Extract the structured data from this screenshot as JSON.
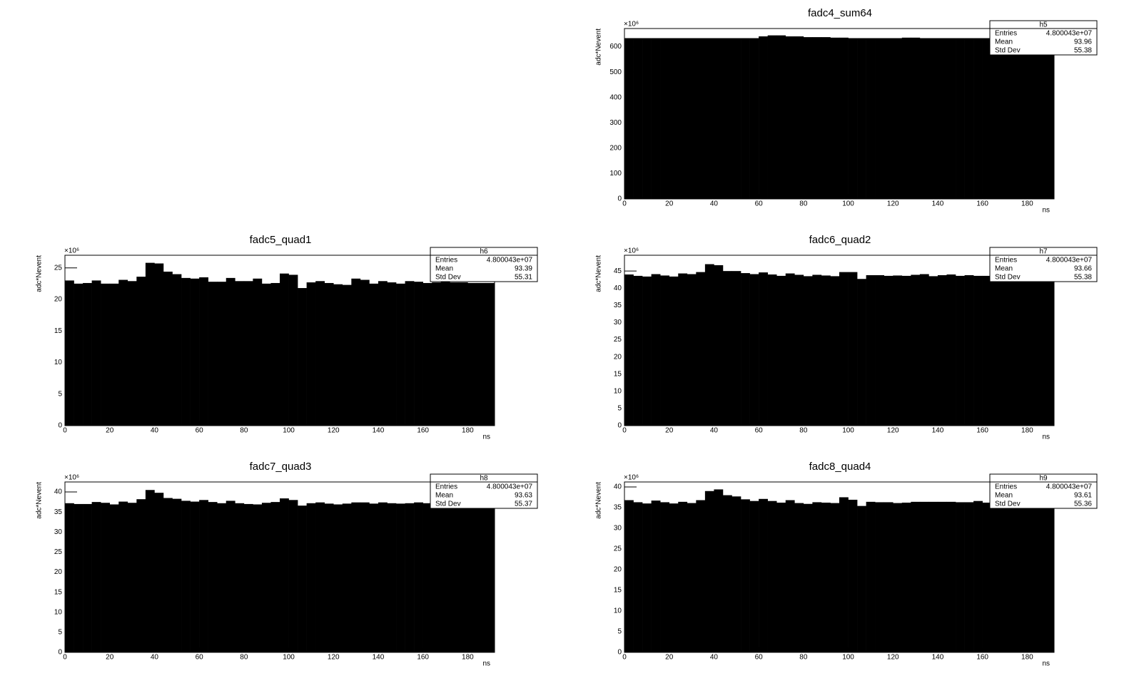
{
  "chart_data": [
    {
      "type": "histogram",
      "title": "fadc4_sum64",
      "x_label": "ns",
      "y_label": "adc*Nevent",
      "y_multiplier": "×10⁶",
      "color": "#000000",
      "bins": [
        0,
        4,
        8,
        12,
        16,
        20,
        24,
        28,
        32,
        36,
        40,
        44,
        48,
        52,
        56,
        60,
        64,
        68,
        72,
        76,
        80,
        84,
        88,
        92,
        96,
        100,
        104,
        108,
        112,
        116,
        120,
        124,
        128,
        132,
        136,
        140,
        144,
        148,
        152,
        156,
        160,
        164,
        168,
        172,
        176,
        180,
        184,
        188,
        192
      ],
      "values": [
        634,
        634,
        634,
        634,
        634,
        634,
        634,
        634,
        634,
        634,
        634,
        634,
        634,
        634,
        634,
        641,
        645,
        645,
        641,
        641,
        638,
        638,
        638,
        636,
        636,
        634,
        634,
        634,
        634,
        634,
        634,
        636,
        636,
        634,
        634,
        634,
        634,
        634,
        634,
        634,
        634,
        634,
        634,
        634,
        634,
        634,
        634,
        634
      ],
      "xlim": [
        0,
        192
      ],
      "xticks": [
        0,
        20,
        40,
        60,
        80,
        100,
        120,
        140,
        160,
        180
      ],
      "ylim": [
        0,
        672
      ],
      "yticks": [
        0,
        100,
        200,
        300,
        400,
        500,
        600
      ],
      "stats": {
        "name": "h5",
        "rows": [
          [
            "Entries",
            "4.800043e+07"
          ],
          [
            "Mean",
            "93.96"
          ],
          [
            "Std Dev",
            "55.38"
          ]
        ]
      }
    },
    {
      "type": "histogram",
      "title": "fadc5_quad1",
      "x_label": "ns",
      "y_label": "adc*Nevent",
      "y_multiplier": "×10⁶",
      "color": "#000000",
      "bins": [
        0,
        4,
        8,
        12,
        16,
        20,
        24,
        28,
        32,
        36,
        40,
        44,
        48,
        52,
        56,
        60,
        64,
        68,
        72,
        76,
        80,
        84,
        88,
        92,
        96,
        100,
        104,
        108,
        112,
        116,
        120,
        124,
        128,
        132,
        136,
        140,
        144,
        148,
        152,
        156,
        160,
        164,
        168,
        172,
        176,
        180,
        184,
        188,
        192
      ],
      "values": [
        23,
        22.5,
        22.6,
        23,
        22.5,
        22.5,
        23.1,
        22.9,
        23.6,
        25.8,
        25.7,
        24.4,
        24,
        23.4,
        23.3,
        23.5,
        22.8,
        22.8,
        23.4,
        22.9,
        22.9,
        23.3,
        22.5,
        22.6,
        24.1,
        23.9,
        21.8,
        22.7,
        22.9,
        22.6,
        22.4,
        22.3,
        23.3,
        23.1,
        22.5,
        22.9,
        22.7,
        22.5,
        22.9,
        22.8,
        22.6,
        22.7,
        22.8,
        22.7,
        22.7,
        22.6,
        22.6,
        22.6
      ],
      "xlim": [
        0,
        192
      ],
      "xticks": [
        0,
        20,
        40,
        60,
        80,
        100,
        120,
        140,
        160,
        180
      ],
      "ylim": [
        0,
        27
      ],
      "yticks": [
        0,
        5,
        10,
        15,
        20,
        25
      ],
      "stats": {
        "name": "h6",
        "rows": [
          [
            "Entries",
            "4.800043e+07"
          ],
          [
            "Mean",
            "93.39"
          ],
          [
            "Std Dev",
            "55.31"
          ]
        ]
      }
    },
    {
      "type": "histogram",
      "title": "fadc6_quad2",
      "x_label": "ns",
      "y_label": "adc*Nevent",
      "y_multiplier": "×10⁶",
      "color": "#000000",
      "bins": [
        0,
        4,
        8,
        12,
        16,
        20,
        24,
        28,
        32,
        36,
        40,
        44,
        48,
        52,
        56,
        60,
        64,
        68,
        72,
        76,
        80,
        84,
        88,
        92,
        96,
        100,
        104,
        108,
        112,
        116,
        120,
        124,
        128,
        132,
        136,
        140,
        144,
        148,
        152,
        156,
        160,
        164,
        168,
        172,
        176,
        180,
        184,
        188,
        192
      ],
      "values": [
        44,
        43.6,
        43.4,
        44.1,
        43.7,
        43.4,
        44.3,
        44.1,
        44.7,
        47,
        46.7,
        45,
        45,
        44.4,
        44.1,
        44.6,
        44,
        43.6,
        44.3,
        43.9,
        43.5,
        43.9,
        43.7,
        43.5,
        44.7,
        44.7,
        42.7,
        43.8,
        43.8,
        43.6,
        43.7,
        43.6,
        43.9,
        44.1,
        43.5,
        43.8,
        44,
        43.6,
        43.8,
        43.6,
        43.6,
        43.9,
        43.6,
        43.6,
        43.7,
        43.7,
        43.6,
        43.6
      ],
      "xlim": [
        0,
        192
      ],
      "xticks": [
        0,
        20,
        40,
        60,
        80,
        100,
        120,
        140,
        160,
        180
      ],
      "ylim": [
        0,
        49.6
      ],
      "yticks": [
        0,
        5,
        10,
        15,
        20,
        25,
        30,
        35,
        40,
        45
      ],
      "stats": {
        "name": "h7",
        "rows": [
          [
            "Entries",
            "4.800043e+07"
          ],
          [
            "Mean",
            "93.66"
          ],
          [
            "Std Dev",
            "55.38"
          ]
        ]
      }
    },
    {
      "type": "histogram",
      "title": "fadc7_quad3",
      "x_label": "ns",
      "y_label": "adc*Nevent",
      "y_multiplier": "×10⁶",
      "color": "#000000",
      "bins": [
        0,
        4,
        8,
        12,
        16,
        20,
        24,
        28,
        32,
        36,
        40,
        44,
        48,
        52,
        56,
        60,
        64,
        68,
        72,
        76,
        80,
        84,
        88,
        92,
        96,
        100,
        104,
        108,
        112,
        116,
        120,
        124,
        128,
        132,
        136,
        140,
        144,
        148,
        152,
        156,
        160,
        164,
        168,
        172,
        176,
        180,
        184,
        188,
        192
      ],
      "values": [
        37.2,
        37,
        37,
        37.5,
        37.3,
        36.9,
        37.6,
        37.3,
        38.2,
        40.5,
        39.8,
        38.5,
        38.3,
        37.8,
        37.6,
        38,
        37.5,
        37.2,
        37.8,
        37.2,
        37,
        36.9,
        37.3,
        37.5,
        38.4,
        38,
        36.6,
        37.2,
        37.4,
        37.1,
        36.9,
        37.1,
        37.4,
        37.4,
        37.1,
        37.4,
        37.2,
        37.1,
        37.2,
        37.4,
        37.2,
        37.2,
        37.3,
        37.2,
        37.2,
        37.1,
        37.1,
        37.1
      ],
      "xlim": [
        0,
        192
      ],
      "xticks": [
        0,
        20,
        40,
        60,
        80,
        100,
        120,
        140,
        160,
        180
      ],
      "ylim": [
        0,
        42.5
      ],
      "yticks": [
        0,
        5,
        10,
        15,
        20,
        25,
        30,
        35,
        40
      ],
      "stats": {
        "name": "h8",
        "rows": [
          [
            "Entries",
            "4.800043e+07"
          ],
          [
            "Mean",
            "93.63"
          ],
          [
            "Std Dev",
            "55.37"
          ]
        ]
      }
    },
    {
      "type": "histogram",
      "title": "fadc8_quad4",
      "x_label": "ns",
      "y_label": "adc*Nevent",
      "y_multiplier": "×10⁶",
      "color": "#000000",
      "bins": [
        0,
        4,
        8,
        12,
        16,
        20,
        24,
        28,
        32,
        36,
        40,
        44,
        48,
        52,
        56,
        60,
        64,
        68,
        72,
        76,
        80,
        84,
        88,
        92,
        96,
        100,
        104,
        108,
        112,
        116,
        120,
        124,
        128,
        132,
        136,
        140,
        144,
        148,
        152,
        156,
        160,
        164,
        168,
        172,
        176,
        180,
        184,
        188,
        192
      ],
      "values": [
        36.8,
        36.3,
        36,
        36.7,
        36.3,
        36,
        36.4,
        36.1,
        36.8,
        39,
        39.4,
        38,
        37.7,
        37,
        36.6,
        37.1,
        36.6,
        36.2,
        36.8,
        36.1,
        35.9,
        36.3,
        36.2,
        36.1,
        37.5,
        36.9,
        35.4,
        36.4,
        36.3,
        36.3,
        36.1,
        36.2,
        36.4,
        36.4,
        36.4,
        36.4,
        36.4,
        36.3,
        36.3,
        36.6,
        36.2,
        36.3,
        36.3,
        36.3,
        36.2,
        36.2,
        36.2,
        36.2
      ],
      "xlim": [
        0,
        192
      ],
      "xticks": [
        0,
        20,
        40,
        60,
        80,
        100,
        120,
        140,
        160,
        180
      ],
      "ylim": [
        0,
        41.2
      ],
      "yticks": [
        0,
        5,
        10,
        15,
        20,
        25,
        30,
        35,
        40
      ],
      "stats": {
        "name": "h9",
        "rows": [
          [
            "Entries",
            "4.800043e+07"
          ],
          [
            "Mean",
            "93.61"
          ],
          [
            "Std Dev",
            "55.36"
          ]
        ]
      }
    }
  ]
}
